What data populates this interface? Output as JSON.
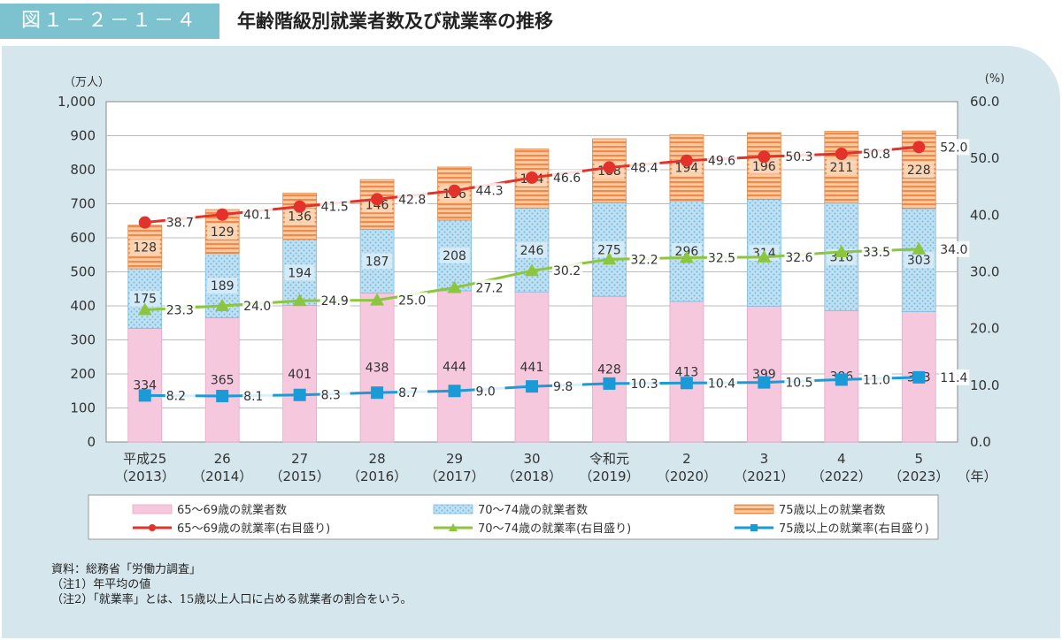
{
  "header": {
    "figure_label": "図１－２－１－４",
    "title": "年齢階級別就業者数及び就業率の推移"
  },
  "colors": {
    "header_label_bg": "#7dc3cf",
    "panel_bg": "#d6e6ed",
    "bar_65_69": "#f6c8de",
    "bar_70_74": "#bfe0f2",
    "bar_70_74_dots": "#6fb9e0",
    "bar_75": "#f9cba3",
    "bar_75_stripes": "#ef8a4a",
    "line_65_69": "#e3322b",
    "line_70_74": "#8cc63f",
    "line_75": "#1a9bd7"
  },
  "chart_data": {
    "type": "bar",
    "stacked": true,
    "combo_with": "line",
    "categories": [
      [
        "平成25",
        "（2013）"
      ],
      [
        "26",
        "（2014）"
      ],
      [
        "27",
        "（2015）"
      ],
      [
        "28",
        "（2016）"
      ],
      [
        "29",
        "（2017）"
      ],
      [
        "30",
        "（2018）"
      ],
      [
        "令和元",
        "（2019）"
      ],
      [
        "2",
        "（2020）"
      ],
      [
        "3",
        "（2021）"
      ],
      [
        "4",
        "（2022）"
      ],
      [
        "5",
        "（2023）"
      ]
    ],
    "x_unit": "（年）",
    "y_left": {
      "unit": "（万人）",
      "ylim": [
        0,
        1000
      ],
      "ticks": [
        "0",
        "100",
        "200",
        "300",
        "400",
        "500",
        "600",
        "700",
        "800",
        "900",
        "1,000"
      ]
    },
    "y_right": {
      "unit": "(%)",
      "ylim": [
        0,
        60
      ],
      "ticks": [
        "0.0",
        "10.0",
        "20.0",
        "30.0",
        "40.0",
        "50.0",
        "60.0"
      ]
    },
    "bar_series": [
      {
        "name": "65～69歳の就業者数",
        "values": [
          334,
          365,
          401,
          438,
          444,
          441,
          428,
          413,
          399,
          386,
          383
        ]
      },
      {
        "name": "70～74歳の就業者数",
        "values": [
          175,
          189,
          194,
          187,
          208,
          246,
          275,
          296,
          314,
          316,
          303
        ]
      },
      {
        "name": "75歳以上の就業者数",
        "values": [
          128,
          129,
          136,
          146,
          156,
          174,
          188,
          194,
          196,
          211,
          228
        ]
      }
    ],
    "line_series": [
      {
        "name": "65～69歳の就業率(右目盛り)",
        "axis": "right",
        "marker": "circle",
        "values": [
          38.7,
          40.1,
          41.5,
          42.8,
          44.3,
          46.6,
          48.4,
          49.6,
          50.3,
          50.8,
          52.0
        ]
      },
      {
        "name": "70～74歳の就業率(右目盛り)",
        "axis": "right",
        "marker": "triangle",
        "values": [
          23.3,
          24.0,
          24.9,
          25.0,
          27.2,
          30.2,
          32.2,
          32.5,
          32.6,
          33.5,
          34.0
        ]
      },
      {
        "name": "75歳以上の就業率(右目盛り)",
        "axis": "right",
        "marker": "square",
        "values": [
          8.2,
          8.1,
          8.3,
          8.7,
          9.0,
          9.8,
          10.3,
          10.4,
          10.5,
          11.0,
          11.4
        ]
      }
    ],
    "grid": true,
    "legend_position": "bottom"
  },
  "notes": [
    "資料：総務省「労働力調査」",
    "（注1）年平均の値",
    "（注2）「就業率」とは、15歳以上人口に占める就業者の割合をいう。"
  ]
}
